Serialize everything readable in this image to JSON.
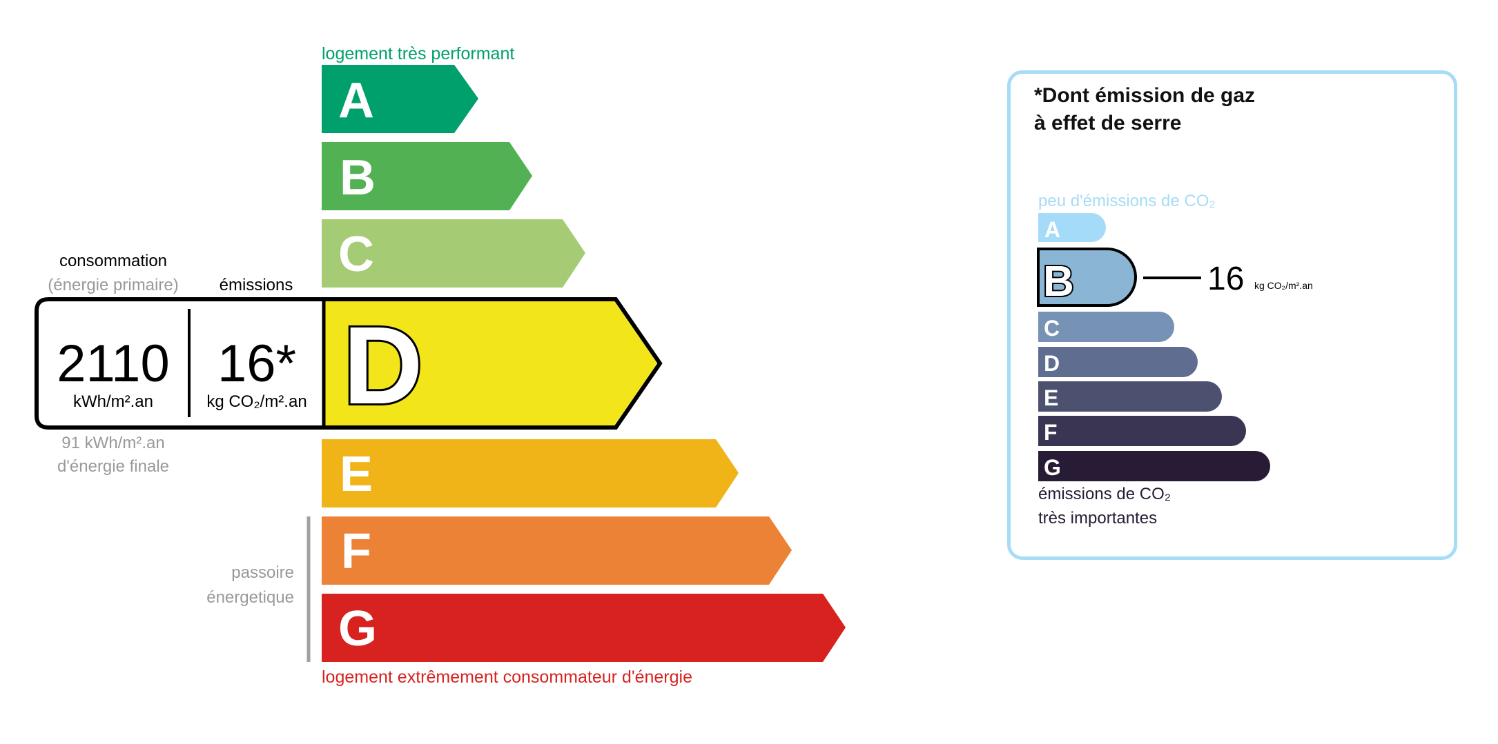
{
  "dpe": {
    "top_label": "logement très performant",
    "bottom_label": "logement extrêmement consommateur d'énergie",
    "passoire_label_line1": "passoire",
    "passoire_label_line2": "énergetique",
    "current_class": "D",
    "classes": [
      {
        "letter": "A",
        "color": "#00a06c"
      },
      {
        "letter": "B",
        "color": "#52b153"
      },
      {
        "letter": "C",
        "color": "#a5cc74"
      },
      {
        "letter": "D",
        "color": "#f2e61b"
      },
      {
        "letter": "E",
        "color": "#f0b418"
      },
      {
        "letter": "F",
        "color": "#eb8235"
      },
      {
        "letter": "G",
        "color": "#d7221f"
      }
    ],
    "consumption_header": "consommation",
    "consumption_subheader": "(énergie primaire)",
    "emissions_header": "émissions",
    "consumption_value": "2110",
    "consumption_unit": "kWh/m².an",
    "emissions_value": "16*",
    "emissions_unit": "kg CO₂/m².an",
    "final_energy_line1": "91 kWh/m².an",
    "final_energy_line2": "d'énergie finale"
  },
  "ges": {
    "title_line1": "*Dont émission de gaz",
    "title_line2": "à effet de serre",
    "top_label": "peu d'émissions de CO₂",
    "bottom_label_line1": "émissions de CO₂",
    "bottom_label_line2": "très importantes",
    "current_class": "B",
    "value": "16",
    "unit": "kg CO₂/m².an",
    "border_color": "#a6dcf5",
    "classes": [
      {
        "letter": "A",
        "color": "#a3dbf8"
      },
      {
        "letter": "B",
        "color": "#8ab5d5"
      },
      {
        "letter": "C",
        "color": "#7692b4"
      },
      {
        "letter": "D",
        "color": "#5e6d90"
      },
      {
        "letter": "E",
        "color": "#4d5170"
      },
      {
        "letter": "F",
        "color": "#393553"
      },
      {
        "letter": "G",
        "color": "#281b35"
      }
    ]
  }
}
